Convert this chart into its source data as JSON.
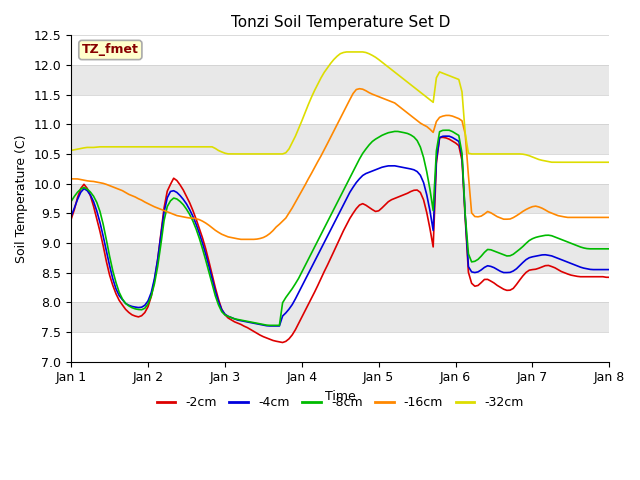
{
  "title": "Tonzi Soil Temperature Set D",
  "xlabel": "Time",
  "ylabel": "Soil Temperature (C)",
  "ylim": [
    7.0,
    12.5
  ],
  "xlim": [
    0,
    168
  ],
  "legend_label": "TZ_fmet",
  "legend_bg": "#ffffcc",
  "legend_border": "#aaaaaa",
  "legend_text_color": "#880000",
  "plot_bg": "#e8e8e8",
  "band_color": "#f5f5f5",
  "series_order": [
    "-2cm",
    "-4cm",
    "-8cm",
    "-16cm",
    "-32cm"
  ],
  "series": {
    "-2cm": {
      "color": "#dd0000",
      "lw": 1.2
    },
    "-4cm": {
      "color": "#0000dd",
      "lw": 1.2
    },
    "-8cm": {
      "color": "#00bb00",
      "lw": 1.2
    },
    "-16cm": {
      "color": "#ff8800",
      "lw": 1.2
    },
    "-32cm": {
      "color": "#dddd00",
      "lw": 1.2
    }
  },
  "x_ticks": [
    0,
    24,
    48,
    72,
    96,
    120,
    144,
    168
  ],
  "x_tick_labels": [
    "Jan 1",
    "Jan 2",
    "Jan 3",
    "Jan 4",
    "Jan 5",
    "Jan 6",
    "Jan 7",
    "Jan 8"
  ],
  "y_ticks": [
    7.0,
    7.5,
    8.0,
    8.5,
    9.0,
    9.5,
    10.0,
    10.5,
    11.0,
    11.5,
    12.0,
    12.5
  ],
  "data": {
    "-2cm": [
      9.4,
      9.55,
      9.75,
      9.9,
      10.0,
      9.95,
      9.85,
      9.7,
      9.5,
      9.3,
      9.1,
      8.85,
      8.6,
      8.4,
      8.25,
      8.12,
      8.02,
      7.95,
      7.88,
      7.83,
      7.79,
      7.77,
      7.75,
      7.76,
      7.8,
      7.87,
      8.0,
      8.2,
      8.5,
      8.85,
      9.3,
      9.7,
      9.92,
      10.0,
      10.1,
      10.05,
      9.98,
      9.9,
      9.8,
      9.7,
      9.58,
      9.45,
      9.3,
      9.15,
      9.0,
      8.8,
      8.6,
      8.38,
      8.18,
      8.0,
      7.85,
      7.78,
      7.73,
      7.7,
      7.67,
      7.65,
      7.63,
      7.6,
      7.58,
      7.55,
      7.52,
      7.49,
      7.46,
      7.43,
      7.41,
      7.39,
      7.37,
      7.35,
      7.34,
      7.33,
      7.32,
      7.34,
      7.38,
      7.44,
      7.52,
      7.62,
      7.72,
      7.82,
      7.92,
      8.02,
      8.12,
      8.22,
      8.33,
      8.44,
      8.55,
      8.65,
      8.76,
      8.87,
      8.98,
      9.09,
      9.2,
      9.3,
      9.4,
      9.48,
      9.56,
      9.62,
      9.67,
      9.65,
      9.62,
      9.58,
      9.55,
      9.52,
      9.55,
      9.6,
      9.65,
      9.7,
      9.73,
      9.75,
      9.77,
      9.79,
      9.81,
      9.83,
      9.86,
      9.88,
      9.9,
      9.88,
      9.82,
      9.65,
      9.42,
      9.15,
      8.85,
      10.75,
      10.78,
      10.78,
      10.77,
      10.75,
      10.72,
      10.69,
      10.65,
      10.6,
      9.8,
      8.6,
      8.35,
      8.28,
      8.26,
      8.3,
      8.35,
      8.4,
      8.38,
      8.35,
      8.32,
      8.28,
      8.25,
      8.22,
      8.2,
      8.2,
      8.22,
      8.28,
      8.35,
      8.42,
      8.48,
      8.53,
      8.55,
      8.55,
      8.56,
      8.58,
      8.6,
      8.62,
      8.62,
      8.6,
      8.58,
      8.55,
      8.52,
      8.5,
      8.48,
      8.46,
      8.45,
      8.44,
      8.43,
      8.43,
      8.43,
      8.43,
      8.43,
      8.43,
      8.43,
      8.43,
      8.43,
      8.42,
      8.42
    ],
    "-4cm": [
      9.45,
      9.58,
      9.72,
      9.84,
      9.92,
      9.9,
      9.84,
      9.75,
      9.62,
      9.45,
      9.25,
      9.02,
      8.78,
      8.55,
      8.35,
      8.2,
      8.1,
      8.04,
      7.98,
      7.95,
      7.93,
      7.92,
      7.91,
      7.91,
      7.93,
      7.98,
      8.08,
      8.25,
      8.52,
      8.85,
      9.25,
      9.62,
      9.8,
      9.88,
      9.88,
      9.85,
      9.8,
      9.74,
      9.67,
      9.58,
      9.48,
      9.36,
      9.22,
      9.07,
      8.9,
      8.72,
      8.52,
      8.32,
      8.12,
      7.97,
      7.85,
      7.79,
      7.76,
      7.74,
      7.72,
      7.7,
      7.69,
      7.68,
      7.67,
      7.66,
      7.65,
      7.64,
      7.63,
      7.62,
      7.61,
      7.6,
      7.6,
      7.6,
      7.6,
      7.6,
      7.78,
      7.82,
      7.88,
      7.95,
      8.04,
      8.14,
      8.24,
      8.34,
      8.44,
      8.54,
      8.64,
      8.74,
      8.84,
      8.94,
      9.04,
      9.14,
      9.24,
      9.34,
      9.44,
      9.54,
      9.64,
      9.74,
      9.84,
      9.92,
      10.0,
      10.06,
      10.12,
      10.16,
      10.18,
      10.2,
      10.22,
      10.24,
      10.26,
      10.28,
      10.29,
      10.3,
      10.3,
      10.3,
      10.29,
      10.28,
      10.27,
      10.26,
      10.25,
      10.24,
      10.22,
      10.18,
      10.1,
      9.95,
      9.72,
      9.45,
      9.12,
      10.75,
      10.78,
      10.8,
      10.8,
      10.8,
      10.78,
      10.75,
      10.72,
      10.68,
      9.85,
      8.65,
      8.52,
      8.5,
      8.5,
      8.52,
      8.56,
      8.6,
      8.62,
      8.6,
      8.58,
      8.55,
      8.52,
      8.5,
      8.5,
      8.5,
      8.52,
      8.55,
      8.6,
      8.65,
      8.7,
      8.74,
      8.76,
      8.77,
      8.78,
      8.79,
      8.8,
      8.8,
      8.79,
      8.78,
      8.76,
      8.74,
      8.72,
      8.7,
      8.68,
      8.66,
      8.64,
      8.62,
      8.6,
      8.58,
      8.57,
      8.56,
      8.55,
      8.55,
      8.55,
      8.55,
      8.55,
      8.55,
      8.55
    ],
    "-8cm": [
      9.7,
      9.78,
      9.85,
      9.9,
      9.94,
      9.92,
      9.88,
      9.82,
      9.74,
      9.62,
      9.45,
      9.22,
      8.96,
      8.7,
      8.48,
      8.3,
      8.15,
      8.05,
      7.98,
      7.94,
      7.91,
      7.89,
      7.88,
      7.87,
      7.88,
      7.93,
      8.03,
      8.18,
      8.42,
      8.72,
      9.1,
      9.48,
      9.65,
      9.72,
      9.76,
      9.74,
      9.7,
      9.65,
      9.58,
      9.5,
      9.4,
      9.28,
      9.14,
      8.98,
      8.8,
      8.62,
      8.42,
      8.23,
      8.05,
      7.92,
      7.82,
      7.78,
      7.76,
      7.74,
      7.72,
      7.71,
      7.7,
      7.69,
      7.68,
      7.67,
      7.66,
      7.65,
      7.64,
      7.63,
      7.62,
      7.61,
      7.61,
      7.61,
      7.61,
      7.61,
      8.02,
      8.08,
      8.15,
      8.22,
      8.3,
      8.38,
      8.48,
      8.58,
      8.68,
      8.78,
      8.88,
      8.98,
      9.08,
      9.18,
      9.28,
      9.38,
      9.48,
      9.58,
      9.68,
      9.78,
      9.88,
      9.98,
      10.08,
      10.18,
      10.28,
      10.38,
      10.48,
      10.55,
      10.62,
      10.68,
      10.73,
      10.76,
      10.79,
      10.82,
      10.84,
      10.86,
      10.87,
      10.88,
      10.88,
      10.87,
      10.86,
      10.85,
      10.83,
      10.8,
      10.76,
      10.68,
      10.55,
      10.35,
      10.1,
      9.8,
      9.45,
      10.85,
      10.88,
      10.9,
      10.9,
      10.9,
      10.88,
      10.85,
      10.82,
      10.78,
      9.75,
      8.9,
      8.68,
      8.68,
      8.7,
      8.74,
      8.8,
      8.86,
      8.9,
      8.88,
      8.86,
      8.84,
      8.82,
      8.8,
      8.78,
      8.78,
      8.8,
      8.84,
      8.88,
      8.92,
      8.97,
      9.02,
      9.06,
      9.08,
      9.1,
      9.11,
      9.12,
      9.13,
      9.13,
      9.12,
      9.1,
      9.08,
      9.06,
      9.04,
      9.02,
      9.0,
      8.98,
      8.96,
      8.94,
      8.92,
      8.91,
      8.9,
      8.9,
      8.9,
      8.9,
      8.9,
      8.9,
      8.9,
      8.9
    ],
    "-16cm": [
      10.08,
      10.08,
      10.08,
      10.07,
      10.06,
      10.05,
      10.04,
      10.04,
      10.03,
      10.02,
      10.01,
      10.0,
      9.98,
      9.96,
      9.94,
      9.92,
      9.9,
      9.88,
      9.85,
      9.82,
      9.8,
      9.78,
      9.75,
      9.73,
      9.7,
      9.67,
      9.65,
      9.62,
      9.6,
      9.58,
      9.56,
      9.54,
      9.52,
      9.5,
      9.48,
      9.46,
      9.45,
      9.44,
      9.43,
      9.42,
      9.42,
      9.41,
      9.4,
      9.38,
      9.35,
      9.32,
      9.28,
      9.24,
      9.2,
      9.17,
      9.14,
      9.12,
      9.1,
      9.09,
      9.08,
      9.07,
      9.06,
      9.06,
      9.06,
      9.06,
      9.06,
      9.06,
      9.07,
      9.08,
      9.1,
      9.13,
      9.17,
      9.22,
      9.28,
      9.32,
      9.37,
      9.42,
      9.5,
      9.58,
      9.67,
      9.76,
      9.85,
      9.94,
      10.04,
      10.13,
      10.22,
      10.32,
      10.41,
      10.5,
      10.6,
      10.7,
      10.8,
      10.9,
      11.0,
      11.1,
      11.2,
      11.3,
      11.4,
      11.5,
      11.58,
      11.6,
      11.6,
      11.58,
      11.55,
      11.52,
      11.5,
      11.48,
      11.46,
      11.44,
      11.42,
      11.4,
      11.38,
      11.36,
      11.32,
      11.28,
      11.24,
      11.2,
      11.16,
      11.12,
      11.08,
      11.04,
      11.0,
      10.98,
      10.95,
      10.9,
      10.85,
      11.1,
      11.12,
      11.14,
      11.15,
      11.15,
      11.14,
      11.12,
      11.1,
      11.08,
      11.0,
      10.5,
      9.55,
      9.45,
      9.44,
      9.44,
      9.46,
      9.5,
      9.54,
      9.5,
      9.47,
      9.44,
      9.42,
      9.4,
      9.4,
      9.4,
      9.42,
      9.45,
      9.48,
      9.52,
      9.55,
      9.58,
      9.6,
      9.62,
      9.62,
      9.6,
      9.58,
      9.55,
      9.52,
      9.5,
      9.48,
      9.46,
      9.45,
      9.44,
      9.43,
      9.43,
      9.43,
      9.43,
      9.43,
      9.43,
      9.43,
      9.43,
      9.43,
      9.43,
      9.43,
      9.43,
      9.43,
      9.43,
      9.43
    ],
    "-32cm": [
      10.56,
      10.57,
      10.58,
      10.59,
      10.6,
      10.61,
      10.61,
      10.61,
      10.61,
      10.62,
      10.62,
      10.62,
      10.62,
      10.62,
      10.62,
      10.62,
      10.62,
      10.62,
      10.62,
      10.62,
      10.62,
      10.62,
      10.62,
      10.62,
      10.62,
      10.62,
      10.62,
      10.62,
      10.62,
      10.62,
      10.62,
      10.62,
      10.62,
      10.62,
      10.62,
      10.62,
      10.62,
      10.62,
      10.62,
      10.62,
      10.62,
      10.62,
      10.62,
      10.62,
      10.62,
      10.62,
      10.62,
      10.62,
      10.58,
      10.55,
      10.53,
      10.51,
      10.5,
      10.5,
      10.5,
      10.5,
      10.5,
      10.5,
      10.5,
      10.5,
      10.5,
      10.5,
      10.5,
      10.5,
      10.5,
      10.5,
      10.5,
      10.5,
      10.5,
      10.5,
      10.5,
      10.52,
      10.58,
      10.68,
      10.78,
      10.9,
      11.02,
      11.15,
      11.28,
      11.4,
      11.52,
      11.62,
      11.72,
      11.82,
      11.9,
      11.97,
      12.04,
      12.1,
      12.15,
      12.19,
      12.21,
      12.22,
      12.22,
      12.22,
      12.22,
      12.22,
      12.22,
      12.22,
      12.2,
      12.18,
      12.15,
      12.12,
      12.08,
      12.04,
      12.0,
      11.96,
      11.92,
      11.88,
      11.84,
      11.8,
      11.76,
      11.72,
      11.68,
      11.64,
      11.6,
      11.56,
      11.52,
      11.48,
      11.44,
      11.4,
      11.36,
      11.9,
      11.88,
      11.86,
      11.84,
      11.82,
      11.8,
      11.78,
      11.76,
      11.74,
      11.0,
      10.52,
      10.5,
      10.5,
      10.5,
      10.5,
      10.5,
      10.5,
      10.5,
      10.5,
      10.5,
      10.5,
      10.5,
      10.5,
      10.5,
      10.5,
      10.5,
      10.5,
      10.5,
      10.5,
      10.49,
      10.48,
      10.46,
      10.44,
      10.42,
      10.4,
      10.39,
      10.38,
      10.37,
      10.36,
      10.36,
      10.36,
      10.36,
      10.36,
      10.36,
      10.36,
      10.36,
      10.36,
      10.36,
      10.36,
      10.36,
      10.36,
      10.36,
      10.36,
      10.36,
      10.36,
      10.36,
      10.36,
      10.36
    ]
  }
}
